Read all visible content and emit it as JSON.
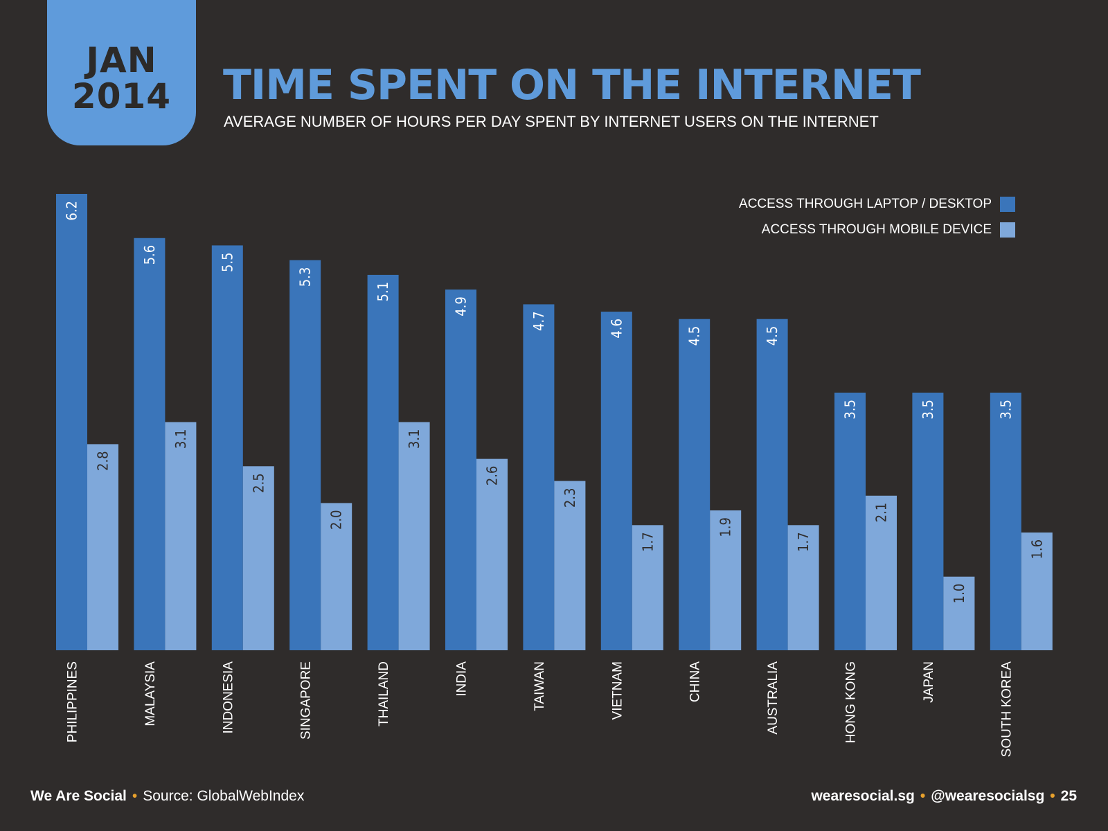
{
  "badge": {
    "month": "JAN",
    "year": "2014"
  },
  "header": {
    "title": "TIME SPENT ON THE INTERNET",
    "subtitle": "AVERAGE NUMBER OF HOURS PER DAY SPENT BY INTERNET USERS ON THE INTERNET"
  },
  "legend": {
    "laptop_label": "ACCESS THROUGH LAPTOP / DESKTOP",
    "mobile_label": "ACCESS THROUGH MOBILE DEVICE"
  },
  "colors": {
    "background": "#2f2c2b",
    "accent": "#5f9bdb",
    "laptop": "#3a75ba",
    "mobile": "#7fa8da"
  },
  "chart_data": {
    "type": "bar",
    "title": "TIME SPENT ON THE INTERNET",
    "subtitle": "AVERAGE NUMBER OF HOURS PER DAY SPENT BY INTERNET USERS ON THE INTERNET",
    "categories": [
      "PHILIPPINES",
      "MALAYSIA",
      "INDONESIA",
      "SINGAPORE",
      "THAILAND",
      "INDIA",
      "TAIWAN",
      "VIETNAM",
      "CHINA",
      "AUSTRALIA",
      "HONG KONG",
      "JAPAN",
      "SOUTH KOREA"
    ],
    "series": [
      {
        "name": "ACCESS THROUGH LAPTOP / DESKTOP",
        "values": [
          6.2,
          5.6,
          5.5,
          5.3,
          5.1,
          4.9,
          4.7,
          4.6,
          4.5,
          4.5,
          3.5,
          3.5,
          3.5
        ]
      },
      {
        "name": "ACCESS THROUGH MOBILE DEVICE",
        "values": [
          2.8,
          3.1,
          2.5,
          2.0,
          3.1,
          2.6,
          2.3,
          1.7,
          1.9,
          1.7,
          2.1,
          1.0,
          1.6
        ]
      }
    ],
    "xlabel": "",
    "ylabel": "",
    "ylim": [
      0,
      6.2
    ],
    "grid": false,
    "legend": "top-right"
  },
  "footer": {
    "brand": "We Are Social",
    "source": "Source: GlobalWebIndex",
    "site": "wearesocial.sg",
    "handle": "@wearesocialsg",
    "page": "25"
  }
}
